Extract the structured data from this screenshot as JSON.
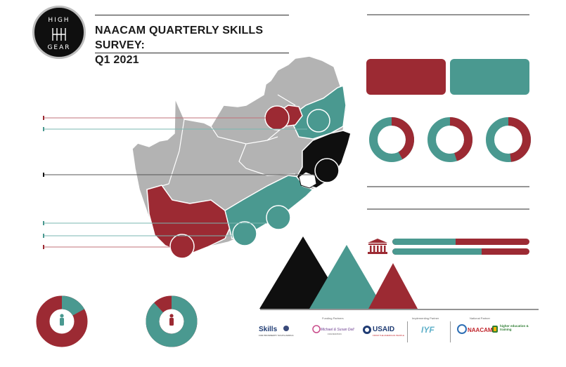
{
  "header": {
    "title_line1": "NAACAM QUARTERLY SKILLS SURVEY:",
    "title_line2": "Q1 2021",
    "logo_top": "HIGH",
    "logo_bottom": "GEAR"
  },
  "colors": {
    "red": "#9c2a33",
    "teal": "#4a9990",
    "black": "#0f0f0f",
    "gray": "#b3b3b3"
  },
  "donuts_top": [
    {
      "icon": "donut-chart-1",
      "red_fraction": 0.42
    },
    {
      "icon": "donut-chart-2",
      "red_fraction": 0.45
    },
    {
      "icon": "donut-chart-3",
      "red_fraction": 0.48
    }
  ],
  "progress_bars": [
    {
      "icon": "building-icon",
      "teal_fraction": 0.46
    },
    {
      "icon": "building-icon",
      "teal_fraction": 0.65
    }
  ],
  "donuts_bottom": [
    {
      "icon": "person-icon",
      "teal_fraction": 0.17
    },
    {
      "icon": "person-icon",
      "teal_fraction": 0.88
    }
  ],
  "partners": {
    "funding_label": "Funding Partners",
    "implementing_label": "Implementing Partner",
    "national_label": "National Partner",
    "skills_logo": "Skills",
    "skills_sub": "FOR PROSPERITY SOUTH AFRICA",
    "dell_logo": "Michael & Susan Dell",
    "dell_sub": "FOUNDATION",
    "usaid_logo": "USAID",
    "usaid_sub": "FROM THE AMERICAN PEOPLE",
    "iyf_logo": "IYF",
    "naacam_logo": "NAACAM",
    "dhet_logo": "higher education & training"
  }
}
